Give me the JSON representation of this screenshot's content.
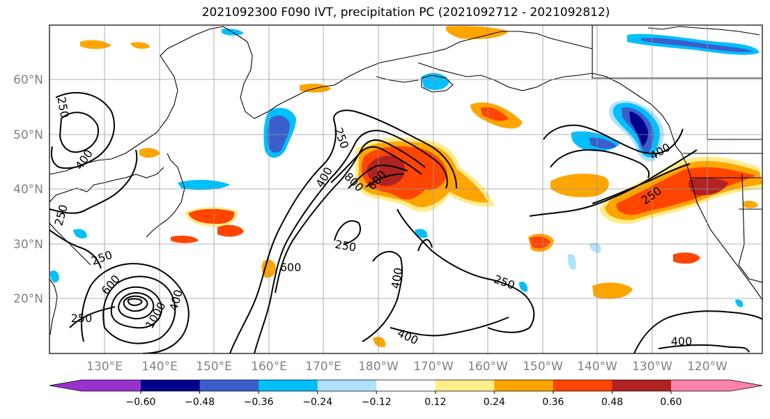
{
  "title": "2021092300 F090 IVT, precipitation PC (2021092712 - 2021092812)",
  "latitude_labels": [
    "60°N",
    "50°N",
    "40°N",
    "30°N",
    "20°N"
  ],
  "longitude_labels": [
    "130°E",
    "140°E",
    "150°E",
    "160°E",
    "170°E",
    "180°W",
    "170°W",
    "160°W",
    "150°W",
    "140°W",
    "130°W",
    "120°W"
  ],
  "ivt_contour_labels": [
    "250",
    "250",
    "250",
    "250",
    "250",
    "250",
    "250",
    "250",
    "400",
    "400",
    "400",
    "400",
    "400",
    "400",
    "400",
    "600",
    "600",
    "600",
    "800",
    "1000"
  ],
  "colorbar": {
    "tick_labels": [
      "−0.60",
      "−0.48",
      "−0.36",
      "−0.24",
      "−0.12",
      "0.12",
      "0.24",
      "0.36",
      "0.48",
      "0.60"
    ],
    "colors": [
      "#9932CC",
      "#00008B",
      "#3A5FCD",
      "#00BFFF",
      "#B0E2FF",
      "#FFFFFF",
      "#FFEC8B",
      "#FFA500",
      "#FF4500",
      "#B22222",
      "#FF82AB"
    ]
  },
  "colors": {
    "contour": "#000000",
    "coastline": "#000000",
    "grid": "#999999",
    "axis_label": "#808080"
  }
}
